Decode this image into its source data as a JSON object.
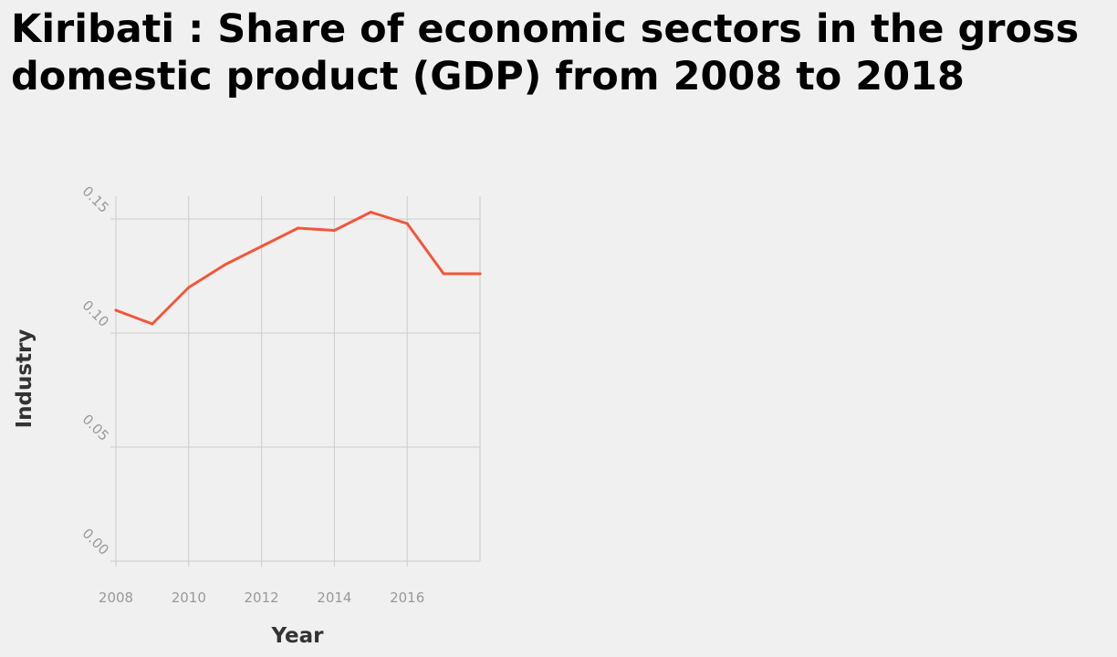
{
  "chart_data": {
    "type": "line",
    "title": "Kiribati : Share of economic sectors in the gross domestic product (GDP) from 2008 to 2018",
    "xlabel": "Year",
    "ylabel": "Industry",
    "x": [
      2008,
      2009,
      2010,
      2011,
      2012,
      2013,
      2014,
      2015,
      2016,
      2017,
      2018
    ],
    "series": [
      {
        "values": [
          0.11,
          0.104,
          0.12,
          0.13,
          0.138,
          0.146,
          0.145,
          0.153,
          0.148,
          0.126,
          0.126
        ]
      }
    ],
    "xlim": [
      2008,
      2018
    ],
    "ylim": [
      0,
      0.16
    ],
    "xticks": [
      2008,
      2010,
      2012,
      2014,
      2016
    ],
    "xtick_labels": [
      "2008",
      "2010",
      "2012",
      "2014",
      "2016"
    ],
    "yticks": [
      0,
      0.05,
      0.1,
      0.15
    ],
    "ytick_labels": [
      "0.00",
      "0.05",
      "0.10",
      "0.15"
    ],
    "grid": true,
    "colors": {
      "line": "#f4553a",
      "grid": "#cccccc",
      "background": "#f0f0f0"
    }
  }
}
